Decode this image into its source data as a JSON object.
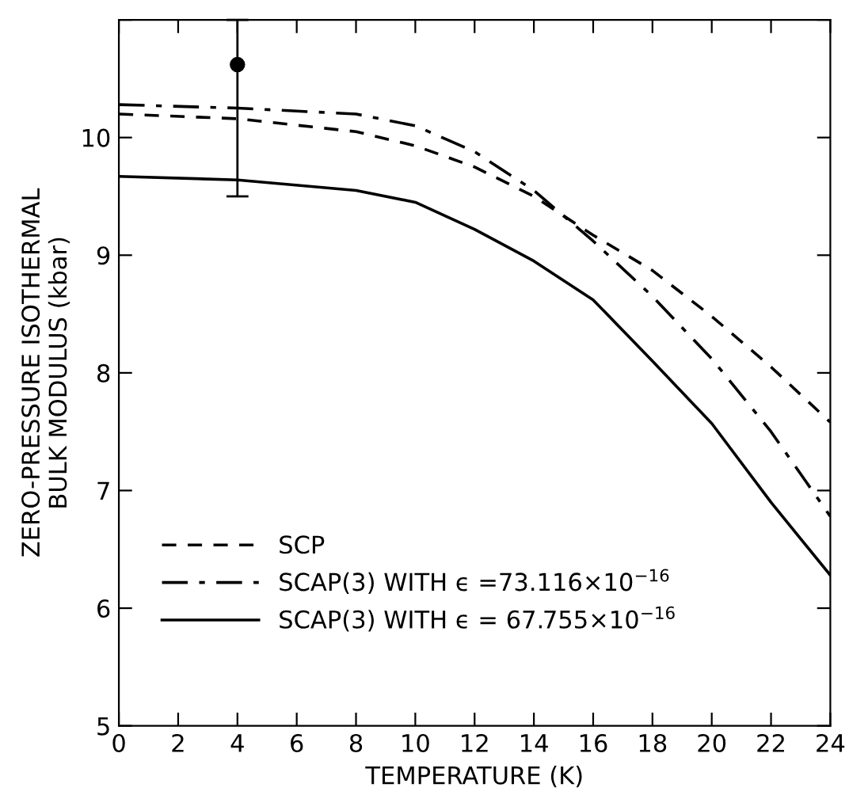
{
  "chart_data": {
    "type": "line",
    "xlabel": "TEMPERATURE (K)",
    "ylabel": "ZERO-PRESSURE ISOTHERMAL\nBULK MODULUS (kbar)",
    "x": [
      0,
      4,
      8,
      10,
      12,
      14,
      16,
      18,
      20,
      22,
      24
    ],
    "series": [
      {
        "name": "SCP",
        "color": "#000000",
        "line_style": "dashed",
        "values": [
          10.2,
          10.16,
          10.05,
          9.93,
          9.75,
          9.5,
          9.17,
          8.87,
          8.48,
          8.05,
          7.58
        ]
      },
      {
        "name": "SCAP(3) WITH ϵ =73.116×10$^{−16}$",
        "color": "#000000",
        "line_style": "dashdot",
        "values": [
          10.28,
          10.25,
          10.2,
          10.1,
          9.88,
          9.55,
          9.12,
          8.65,
          8.12,
          7.5,
          6.78
        ]
      },
      {
        "name": "SCAP(3) WITH ϵ = 67.755×10$^{−16}$",
        "color": "#000000",
        "line_style": "solid",
        "values": [
          9.67,
          9.64,
          9.55,
          9.45,
          9.22,
          8.95,
          8.62,
          8.1,
          7.57,
          6.9,
          6.28
        ]
      },
      {
        "type": "scatter",
        "color": "#000000",
        "marker": "circle",
        "x": [
          4
        ],
        "values": [
          10.62
        ],
        "errors": [
          [
            9.5,
            11.0
          ]
        ]
      }
    ],
    "xlim": [
      0,
      24
    ],
    "ylim": [
      5,
      11
    ],
    "xticks": [
      0,
      2,
      4,
      6,
      8,
      10,
      12,
      14,
      16,
      18,
      20,
      22,
      24
    ],
    "yticks": [
      5,
      6,
      7,
      8,
      9,
      10,
      {
        "value": 11,
        "label": null
      }
    ],
    "grid": false,
    "legend": "bottom left"
  }
}
